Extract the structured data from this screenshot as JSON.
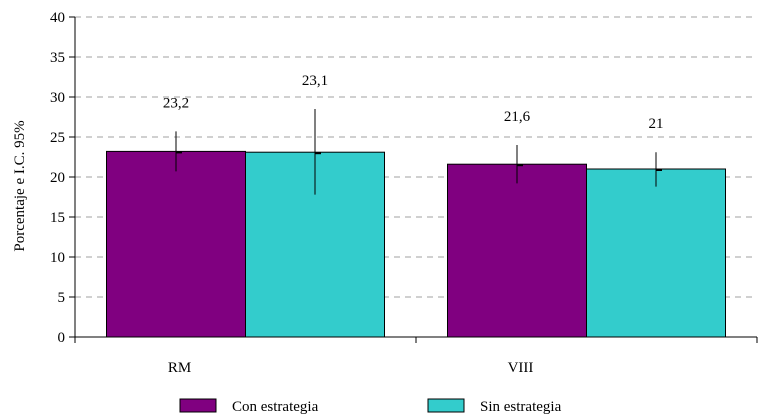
{
  "chart_data": {
    "type": "bar",
    "title": "",
    "xlabel": "",
    "ylabel": "Porcentaje e I.C. 95%",
    "ylim": [
      0,
      40
    ],
    "yticks": [
      0,
      5,
      10,
      15,
      20,
      25,
      30,
      35,
      40
    ],
    "grid": "horizontal-dashed",
    "legend_position": "bottom",
    "categories": [
      "RM",
      "VIII"
    ],
    "series": [
      {
        "name": "Con estrategia",
        "color": "#800080",
        "values": [
          23.2,
          21.6
        ],
        "labels": [
          "23,2",
          "21,6"
        ],
        "ci_low": [
          20.7,
          19.2
        ],
        "ci_high": [
          25.7,
          24.0
        ]
      },
      {
        "name": "Sin estrategia",
        "color": "#33CCCC",
        "values": [
          23.1,
          21.0
        ],
        "labels": [
          "23,1",
          "21"
        ],
        "ci_low": [
          17.8,
          18.8
        ],
        "ci_high": [
          28.5,
          23.1
        ]
      }
    ]
  }
}
